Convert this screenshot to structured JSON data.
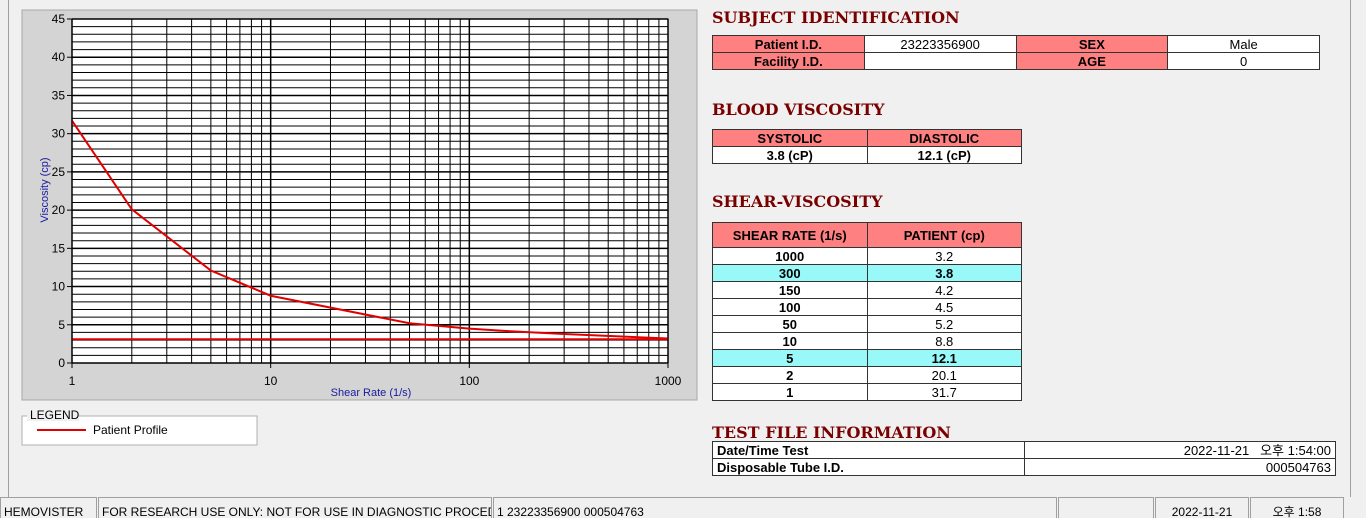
{
  "chart_data": {
    "type": "line",
    "xlabel": "Shear Rate (1/s)",
    "ylabel": "Viscosity (cp)",
    "xlog": true,
    "grid": true,
    "xlim": [
      1,
      1000
    ],
    "ylim": [
      0,
      45
    ],
    "xticks": [
      1,
      10,
      100,
      1000
    ],
    "yticks": [
      0,
      5,
      10,
      15,
      20,
      25,
      30,
      35,
      40,
      45
    ],
    "xminorticks": [
      2,
      3,
      4,
      5,
      6,
      7,
      8,
      9,
      20,
      30,
      40,
      50,
      60,
      70,
      80,
      90,
      200,
      300,
      400,
      500,
      600,
      700,
      800,
      900
    ],
    "yminorticks": [
      1,
      2,
      3,
      4,
      6,
      7,
      8,
      9,
      11,
      12,
      13,
      14,
      16,
      17,
      18,
      19,
      21,
      22,
      23,
      24,
      26,
      27,
      28,
      29,
      31,
      32,
      33,
      34,
      36,
      37,
      38,
      39,
      41,
      42,
      43,
      44
    ],
    "legend_title": "LEGEND",
    "series": [
      {
        "name": "Patient Profile",
        "color": "#e00000",
        "x": [
          1,
          2,
          5,
          10,
          50,
          100,
          150,
          300,
          1000
        ],
        "values": [
          31.7,
          20.1,
          12.1,
          8.8,
          5.2,
          4.5,
          4.2,
          3.8,
          3.2
        ]
      },
      {
        "color": "#e00000",
        "x": [
          1,
          1000
        ],
        "values": [
          3.1,
          3.1
        ]
      }
    ]
  },
  "subject": {
    "title": "SUBJECT IDENTIFICATION",
    "rows": [
      [
        "Patient I.D.",
        "23223356900",
        "SEX",
        "Male"
      ],
      [
        "Facility I.D.",
        null,
        "AGE",
        "0"
      ]
    ]
  },
  "blood_viscosity": {
    "title": "BLOOD VISCOSITY",
    "header": [
      "SYSTOLIC",
      "DIASTOLIC"
    ],
    "values": [
      "3.8 (cP)",
      "12.1 (cP)"
    ]
  },
  "shear_viscosity": {
    "title": "SHEAR-VISCOSITY",
    "header": [
      "SHEAR RATE (1/s)",
      "PATIENT (cp)"
    ],
    "rows": [
      [
        "1000",
        "3.2"
      ],
      [
        "300",
        "3.8"
      ],
      [
        "150",
        "4.2"
      ],
      [
        "100",
        "4.5"
      ],
      [
        "50",
        "5.2"
      ],
      [
        "10",
        "8.8"
      ],
      [
        "5",
        "12.1"
      ],
      [
        "2",
        "20.1"
      ],
      [
        "1",
        "31.7"
      ]
    ],
    "highlighted_rows": [
      1,
      6
    ]
  },
  "test_file": {
    "title": "TEST FILE INFORMATION",
    "rows": [
      [
        "Date/Time Test",
        "2022-11-21   오후 1:54:00"
      ],
      [
        "Disposable Tube I.D.",
        "000504763"
      ]
    ]
  },
  "status_bar": [
    "HEMOVISTER",
    "FOR RESEARCH USE ONLY: NOT FOR USE IN DIAGNOSTIC PROCEDURES",
    "1  23223356900  000504763",
    null,
    "2022-11-21",
    "오후 1:58"
  ]
}
